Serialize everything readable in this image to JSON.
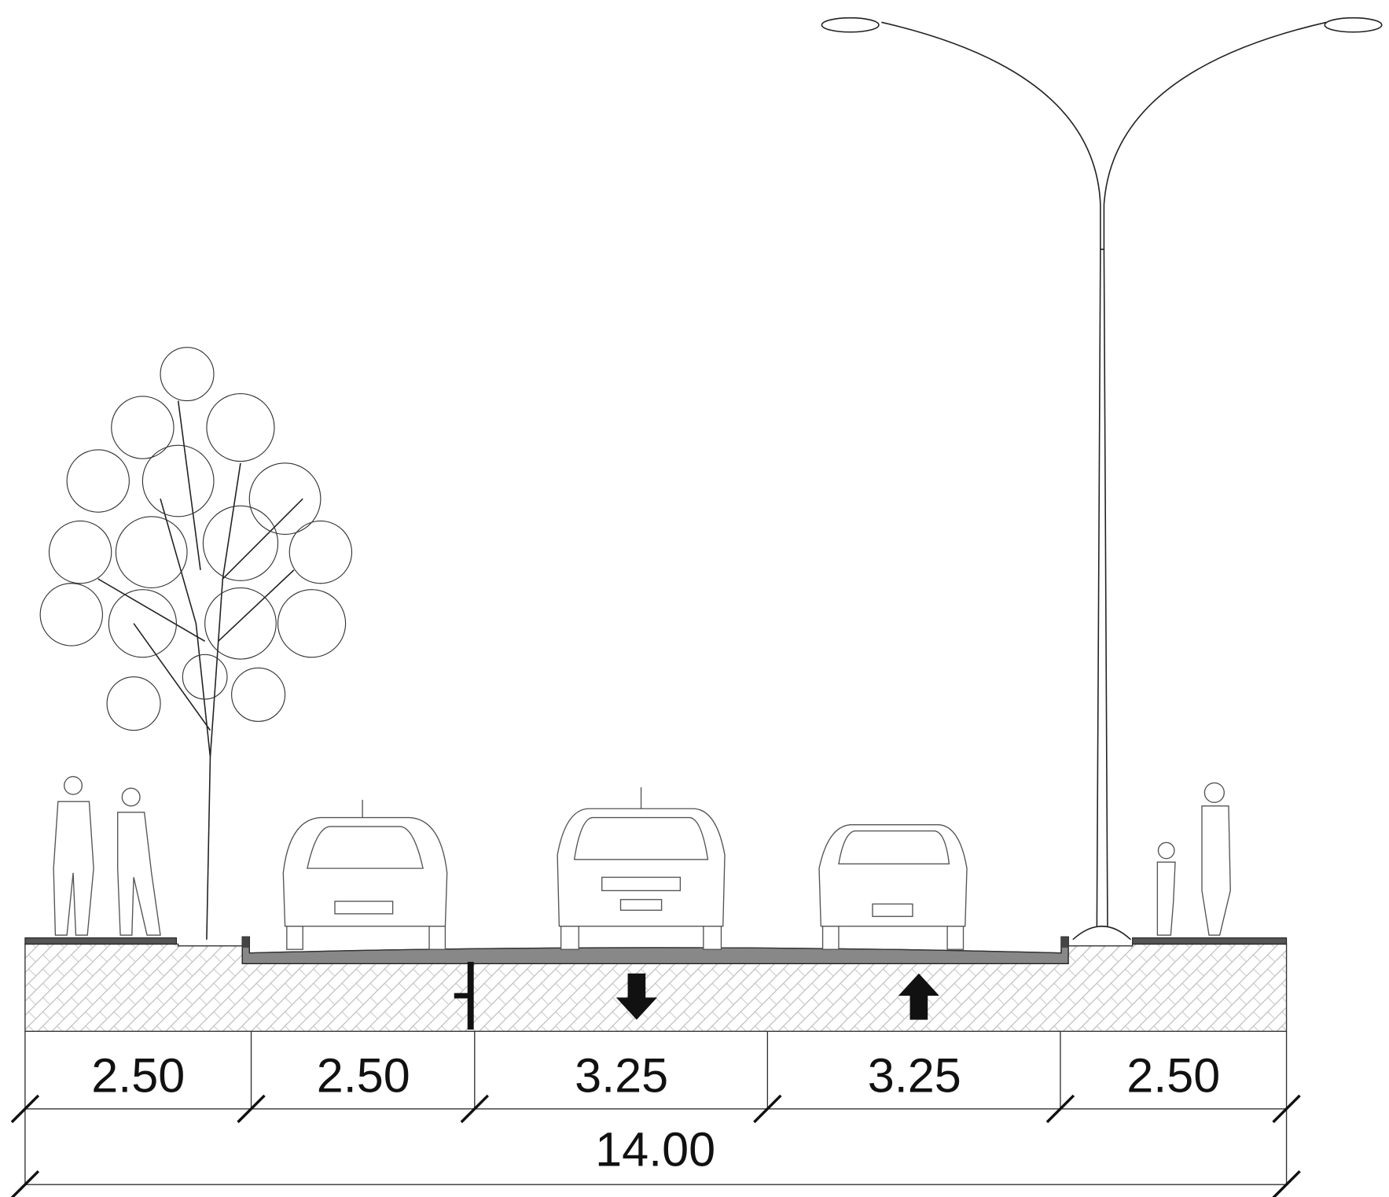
{
  "dimensions": {
    "segments": [
      "2.50",
      "2.50",
      "3.25",
      "3.25",
      "2.50"
    ],
    "total": "14.00"
  }
}
